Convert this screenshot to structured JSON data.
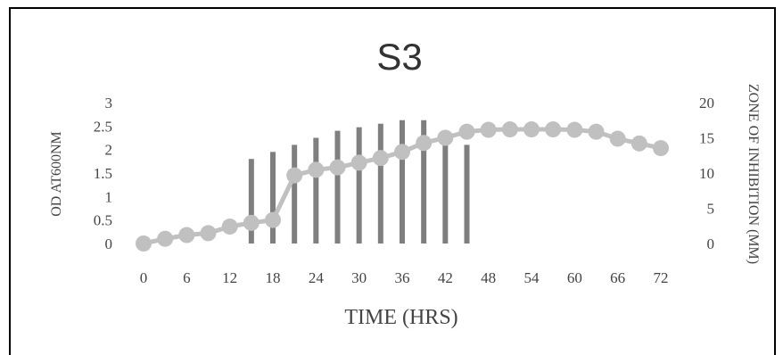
{
  "chart_data": {
    "type": "bar+line",
    "title": "S3",
    "xlabel": "TIME (HRS)",
    "ylabel_left": "OD AT600NM",
    "ylabel_right": "ZONE OF INHIBITION (MM)",
    "x_ticks": [
      "0",
      "6",
      "12",
      "18",
      "24",
      "30",
      "36",
      "42",
      "48",
      "54",
      "60",
      "66",
      "72"
    ],
    "y_left_ticks": [
      "0",
      "0.5",
      "1",
      "1.5",
      "2",
      "2.5",
      "3"
    ],
    "y_right_ticks": [
      "0",
      "5",
      "10",
      "15",
      "20"
    ],
    "xlim": [
      0,
      72
    ],
    "ylim_left": [
      0,
      3
    ],
    "ylim_right": [
      0,
      20
    ],
    "grid": false,
    "series": [
      {
        "type": "bar",
        "axis": "right",
        "x": [
          15,
          18,
          21,
          24,
          27,
          30,
          33,
          36,
          39,
          42,
          45
        ],
        "values": [
          12,
          13,
          14,
          15,
          16,
          16.5,
          17,
          17.5,
          17.5,
          16,
          14
        ]
      },
      {
        "type": "line",
        "axis": "left",
        "x": [
          0,
          3,
          6,
          9,
          12,
          15,
          18,
          21,
          24,
          27,
          30,
          33,
          36,
          39,
          42,
          45,
          48,
          51,
          54,
          57,
          60,
          63,
          66,
          69,
          72
        ],
        "values": [
          0,
          0.1,
          0.18,
          0.22,
          0.36,
          0.44,
          0.5,
          1.45,
          1.57,
          1.62,
          1.72,
          1.82,
          1.95,
          2.14,
          2.25,
          2.38,
          2.42,
          2.43,
          2.43,
          2.43,
          2.42,
          2.38,
          2.23,
          2.13,
          2.03
        ]
      }
    ],
    "colors": {
      "bar": "#7f7f7f",
      "line": "#c0c0c0",
      "text": "#444444"
    }
  }
}
